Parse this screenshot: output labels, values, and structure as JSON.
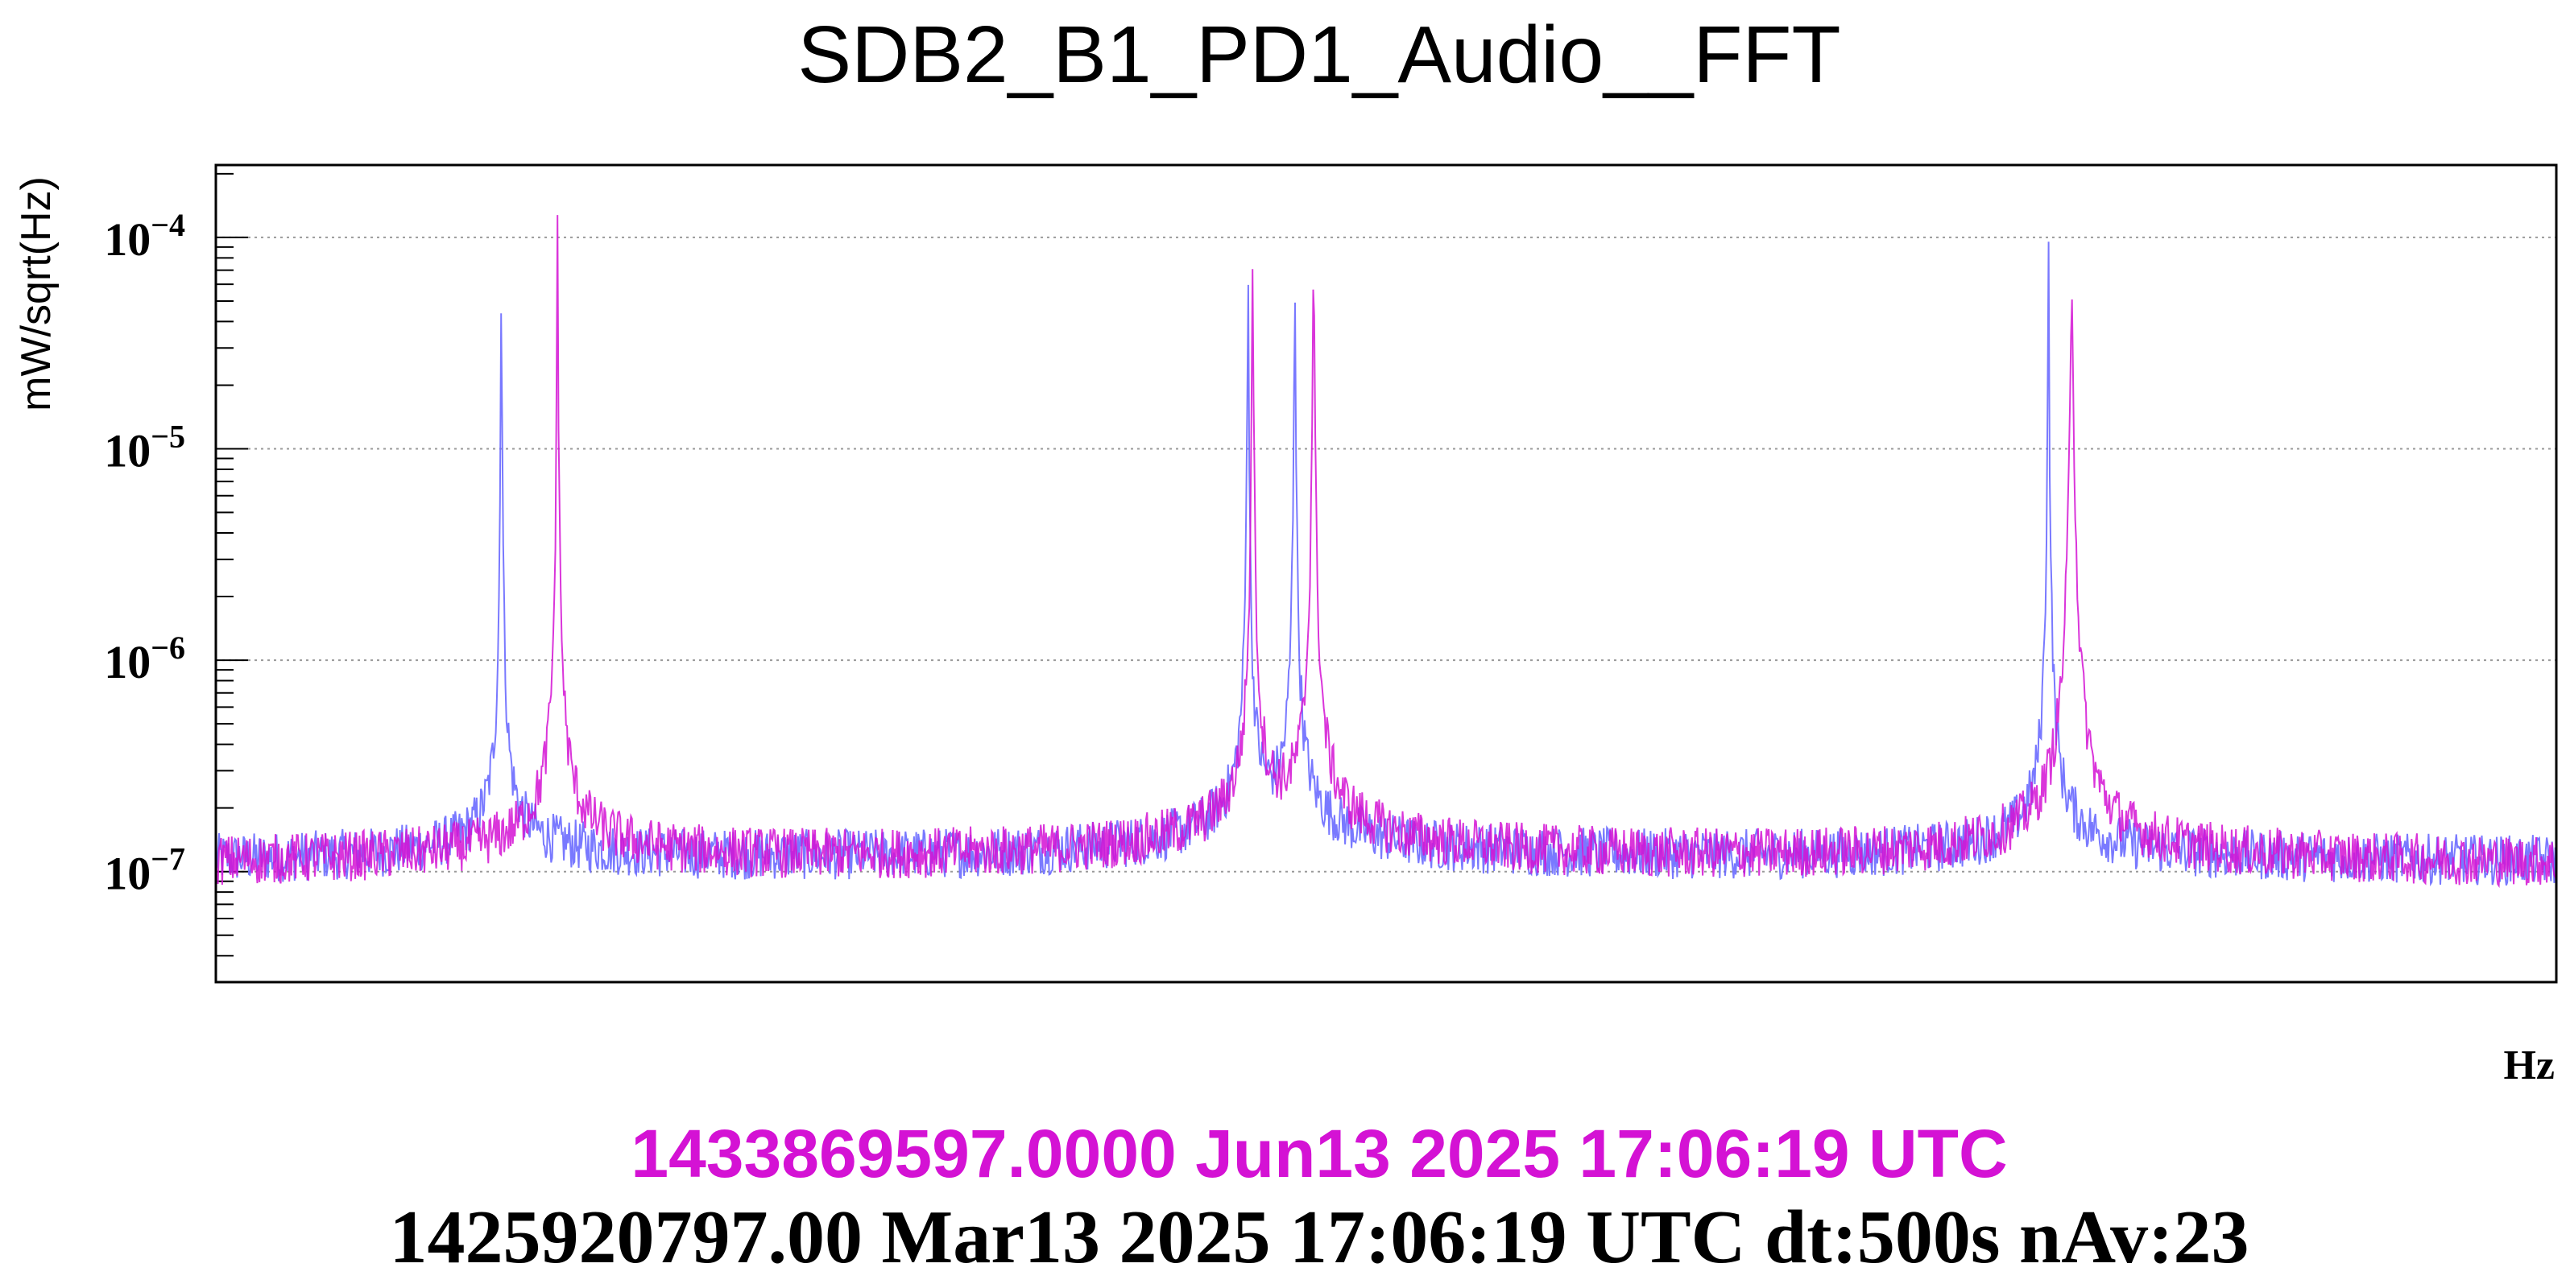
{
  "chart_data": {
    "type": "line",
    "title": "SDB2_B1_PD1_Audio__FFT",
    "xlabel": "Hz",
    "ylabel": "mW/sqrt(Hz)",
    "yscale": "log",
    "ylim": [
      3e-08,
      0.00022
    ],
    "yticks": [
      {
        "value": 1e-07,
        "base": "10",
        "exp": "−7"
      },
      {
        "value": 1e-06,
        "base": "10",
        "exp": "−6"
      },
      {
        "value": 1e-05,
        "base": "10",
        "exp": "−5"
      },
      {
        "value": 0.0001,
        "base": "10",
        "exp": "−4"
      }
    ],
    "grid": "y",
    "series": [
      {
        "color": "#6a6aff",
        "floor": 1.05e-07,
        "noise": 0.12,
        "peaks": [
          {
            "x": 0.122,
            "height": 0.000105,
            "width": 0.004
          },
          {
            "x": 0.441,
            "height": 0.0001,
            "width": 0.005
          },
          {
            "x": 0.461,
            "height": 8.2e-05,
            "width": 0.006
          },
          {
            "x": 0.783,
            "height": 0.000105,
            "width": 0.005
          }
        ]
      },
      {
        "color": "#d412d4",
        "floor": 1e-07,
        "noise": 0.12,
        "peaks": [
          {
            "x": 0.146,
            "height": 0.00012,
            "width": 0.005
          },
          {
            "x": 0.443,
            "height": 9.5e-05,
            "width": 0.006
          },
          {
            "x": 0.469,
            "height": 8.5e-05,
            "width": 0.008
          },
          {
            "x": 0.793,
            "height": 6.5e-05,
            "width": 0.013
          }
        ]
      }
    ]
  },
  "footer": {
    "line1": "1433869597.0000 Jun13 2025 17:06:19 UTC",
    "line1_color": "#d412d4",
    "line2": "1425920797.00 Mar13 2025 17:06:19 UTC dt:500s nAv:23",
    "line2_color": "#000000"
  }
}
